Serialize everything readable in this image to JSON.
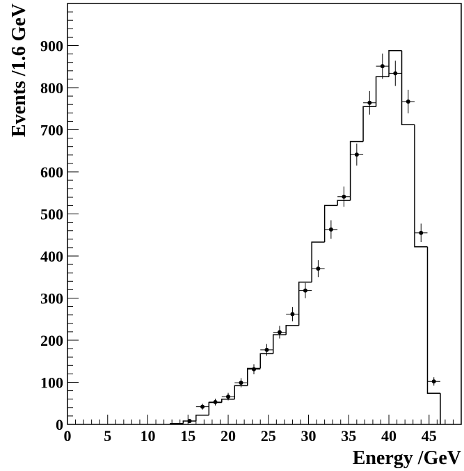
{
  "chart_data": {
    "type": "histogram",
    "xlabel": "Energy /GeV",
    "ylabel": "Events /1.6 GeV",
    "xlim": [
      0,
      49
    ],
    "ylim": [
      0,
      1000
    ],
    "x_ticks": [
      0,
      5,
      10,
      15,
      20,
      25,
      30,
      35,
      40,
      45
    ],
    "y_ticks": [
      0,
      100,
      200,
      300,
      400,
      500,
      600,
      700,
      800,
      900
    ],
    "grid": false,
    "bin_width": 1.6,
    "histogram": {
      "bin_edges": [
        12.8,
        14.4,
        16.0,
        17.6,
        19.2,
        20.8,
        22.4,
        24.0,
        25.6,
        27.2,
        28.8,
        30.4,
        32.0,
        33.6,
        35.2,
        36.8,
        38.4,
        40.0,
        41.6,
        43.2,
        44.8,
        46.4
      ],
      "values": [
        2,
        8,
        22,
        52,
        60,
        92,
        133,
        168,
        213,
        235,
        338,
        433,
        520,
        532,
        672,
        755,
        826,
        888,
        712,
        422,
        74
      ]
    },
    "points": {
      "x": [
        15.2,
        16.8,
        18.4,
        20.0,
        21.6,
        23.2,
        24.8,
        26.4,
        28.0,
        29.6,
        31.2,
        32.8,
        34.4,
        36.0,
        37.6,
        39.2,
        40.8,
        42.4,
        44.0,
        45.6
      ],
      "y": [
        8,
        42,
        53,
        66,
        99,
        131,
        177,
        219,
        262,
        318,
        370,
        463,
        541,
        641,
        764,
        851,
        834,
        767,
        455,
        102
      ],
      "yerr": [
        3,
        7,
        8,
        9,
        11,
        12,
        14,
        15,
        17,
        18,
        20,
        22,
        24,
        26,
        28,
        30,
        30,
        28,
        22,
        10
      ],
      "xerr": 0.8
    }
  }
}
